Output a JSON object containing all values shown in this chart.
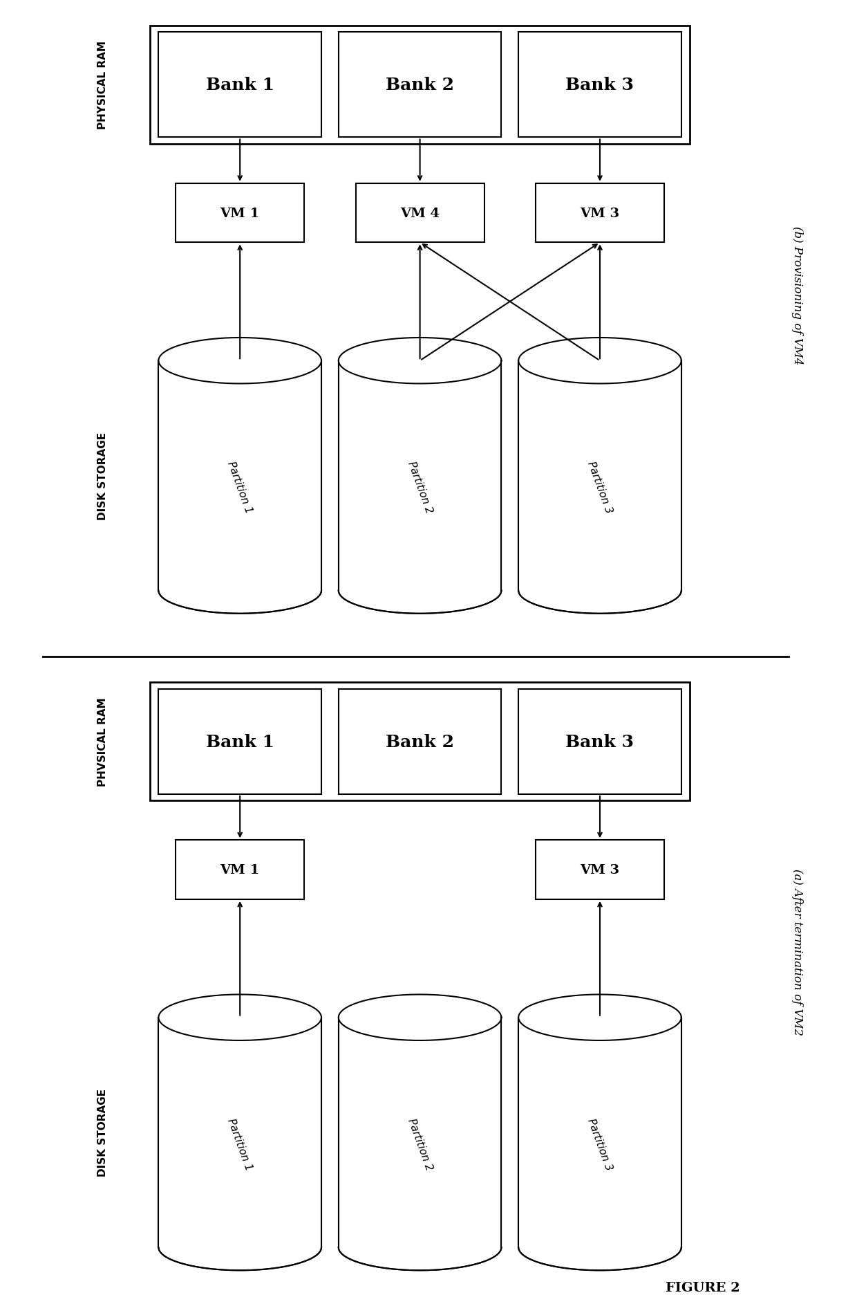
{
  "figure_title": "FIGURE 2",
  "bg_color": "#ffffff",
  "diagram_a_label": "(a) After termination of VM2",
  "diagram_b_label": "(b) Provisioning of VM4",
  "banks_a": [
    "Bank 1",
    "Bank 2",
    "Bank 3"
  ],
  "banks_b": [
    "Bank 1",
    "Bank 2",
    "Bank 3"
  ],
  "vms_a": [
    {
      "label": "VM 1",
      "col": 0
    },
    {
      "label": "VM 3",
      "col": 2
    }
  ],
  "vms_b": [
    {
      "label": "VM 1",
      "col": 0
    },
    {
      "label": "VM 4",
      "col": 1
    },
    {
      "label": "VM 3",
      "col": 2
    }
  ],
  "partitions": [
    "Partition 1",
    "Partition 2",
    "Partition 3"
  ],
  "arrows_a_bank_to_vm": [
    [
      0,
      0
    ],
    [
      2,
      2
    ]
  ],
  "arrows_b_bank_to_vm": [
    [
      0,
      0
    ],
    [
      1,
      1
    ],
    [
      2,
      2
    ]
  ],
  "arrows_a_part_to_vm": [
    [
      0,
      0
    ],
    [
      2,
      2
    ]
  ],
  "arrows_b_part_to_vm": [
    [
      0,
      0
    ],
    [
      1,
      1
    ],
    [
      2,
      1
    ],
    [
      1,
      2
    ],
    [
      2,
      2
    ]
  ],
  "line_color": "#000000",
  "box_color": "#ffffff",
  "box_edge": "#000000",
  "text_color": "#000000",
  "label_fontsize": 12,
  "bank_fontsize": 18,
  "vm_fontsize": 14,
  "partition_fontsize": 11,
  "side_label_fontsize": 11
}
